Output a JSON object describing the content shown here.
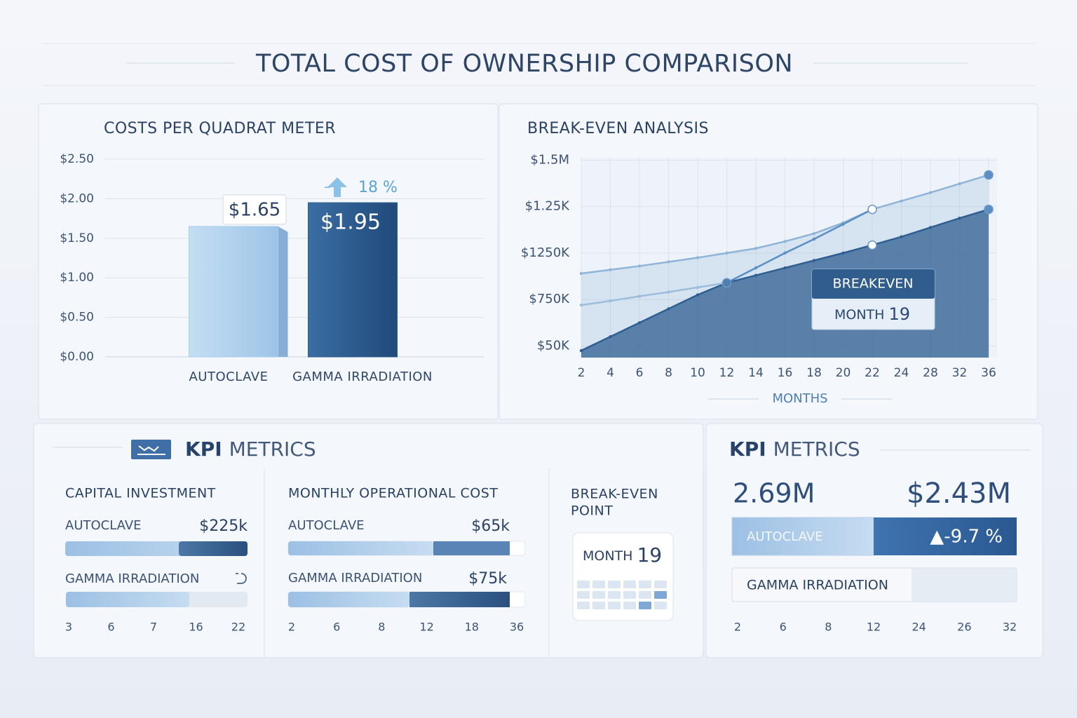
{
  "title": "TOTAL COST OF OWNERSHIP COMPARISON",
  "chart_data": [
    {
      "type": "bar",
      "title": "COSTS PER QUADRAT METER",
      "categories": [
        "AUTOCLAVE",
        "GAMMA IRRADIATION"
      ],
      "values": [
        1.65,
        1.95
      ],
      "value_labels": [
        "$1.65",
        "$1.95"
      ],
      "colors": [
        "#a8cdec",
        "#2c5d8e"
      ],
      "annotation": "18 %",
      "ylim": [
        0,
        2.5
      ],
      "yticks": [
        {
          "value": 0,
          "label": "$0.00"
        },
        {
          "value": 0.5,
          "label": "$0.50"
        },
        {
          "value": 1,
          "label": "$1.00"
        },
        {
          "value": 1.5,
          "label": "$1.50"
        },
        {
          "value": 2,
          "label": "$2.00"
        },
        {
          "value": 2.5,
          "label": "$2.50"
        }
      ],
      "grid": true
    },
    {
      "type": "line",
      "title": "BREAK-EVEN ANALYSIS",
      "x_label": "MONTHS",
      "categories": [
        "2",
        "4",
        "6",
        "8",
        "10",
        "12",
        "14",
        "16",
        "18",
        "20",
        "22",
        "24",
        "28",
        "32",
        "36"
      ],
      "y_categories": [
        "$50K",
        "$750K",
        "$1250K",
        "$1.25K",
        "$1.5M"
      ],
      "ylim": [
        -0.25,
        4.05
      ],
      "grid": true,
      "series": [
        {
          "color": "#8fb4d8",
          "area": true,
          "values": [
            1.56,
            1.64,
            1.72,
            1.81,
            1.9,
            2.0,
            2.1,
            2.25,
            2.42,
            2.65,
            2.94,
            3.12,
            3.3,
            3.49,
            3.68
          ]
        },
        {
          "color": "#2f5f92",
          "area": true,
          "values": [
            -0.1,
            0.2,
            0.5,
            0.8,
            1.1,
            1.36,
            1.52,
            1.68,
            1.84,
            2.0,
            2.17,
            2.35,
            2.55,
            2.75,
            2.94
          ]
        },
        {
          "color": "#9dbddc",
          "values": [
            0.88,
            0.97,
            1.07,
            1.16,
            1.26,
            1.36,
            null,
            null,
            null,
            null,
            null,
            null,
            null,
            null,
            null
          ]
        },
        {
          "color": "#5b8fc4",
          "values": [
            null,
            null,
            null,
            null,
            null,
            1.36,
            1.68,
            2.0,
            2.3,
            2.62,
            2.94,
            null,
            null,
            null,
            null
          ]
        }
      ],
      "annotation": {
        "title": "BREAKEVEN",
        "month_label": "MONTH",
        "month": 19
      }
    }
  ],
  "kpi_left": {
    "title_bold": "KPI",
    "title_rest": "METRICS",
    "capital_investment": {
      "title": "CAPITAL INVESTMENT",
      "rows": [
        {
          "label": "AUTOCLAVE",
          "value": "$225k"
        },
        {
          "label": "GAMMA IRRADIATION"
        }
      ],
      "ticks": [
        3,
        6,
        7,
        16,
        22
      ]
    },
    "monthly_operational_cost": {
      "title": "MONTHLY OPERATIONAL COST",
      "rows": [
        {
          "label": "AUTOCLAVE",
          "value": "$65k"
        },
        {
          "label": "GAMMA IRRADIATION",
          "value": "$75k"
        }
      ],
      "ticks": [
        2,
        6,
        8,
        12,
        18,
        36
      ]
    },
    "break_even_point": {
      "title_lines": [
        "BREAK-EVEN",
        "POINT"
      ],
      "month_label": "MONTH",
      "month": 19
    }
  },
  "kpi_right": {
    "title_bold": "KPI",
    "title_rest": "METRICS",
    "left_value": "2.69M",
    "right_value": "$2.43M",
    "autoclave_label": "AUTOCLAVE",
    "change": "▲-9.7 %",
    "gamma_label": "GAMMA IRRADIATION",
    "ticks": [
      2,
      6,
      8,
      12,
      24,
      26,
      32
    ]
  }
}
